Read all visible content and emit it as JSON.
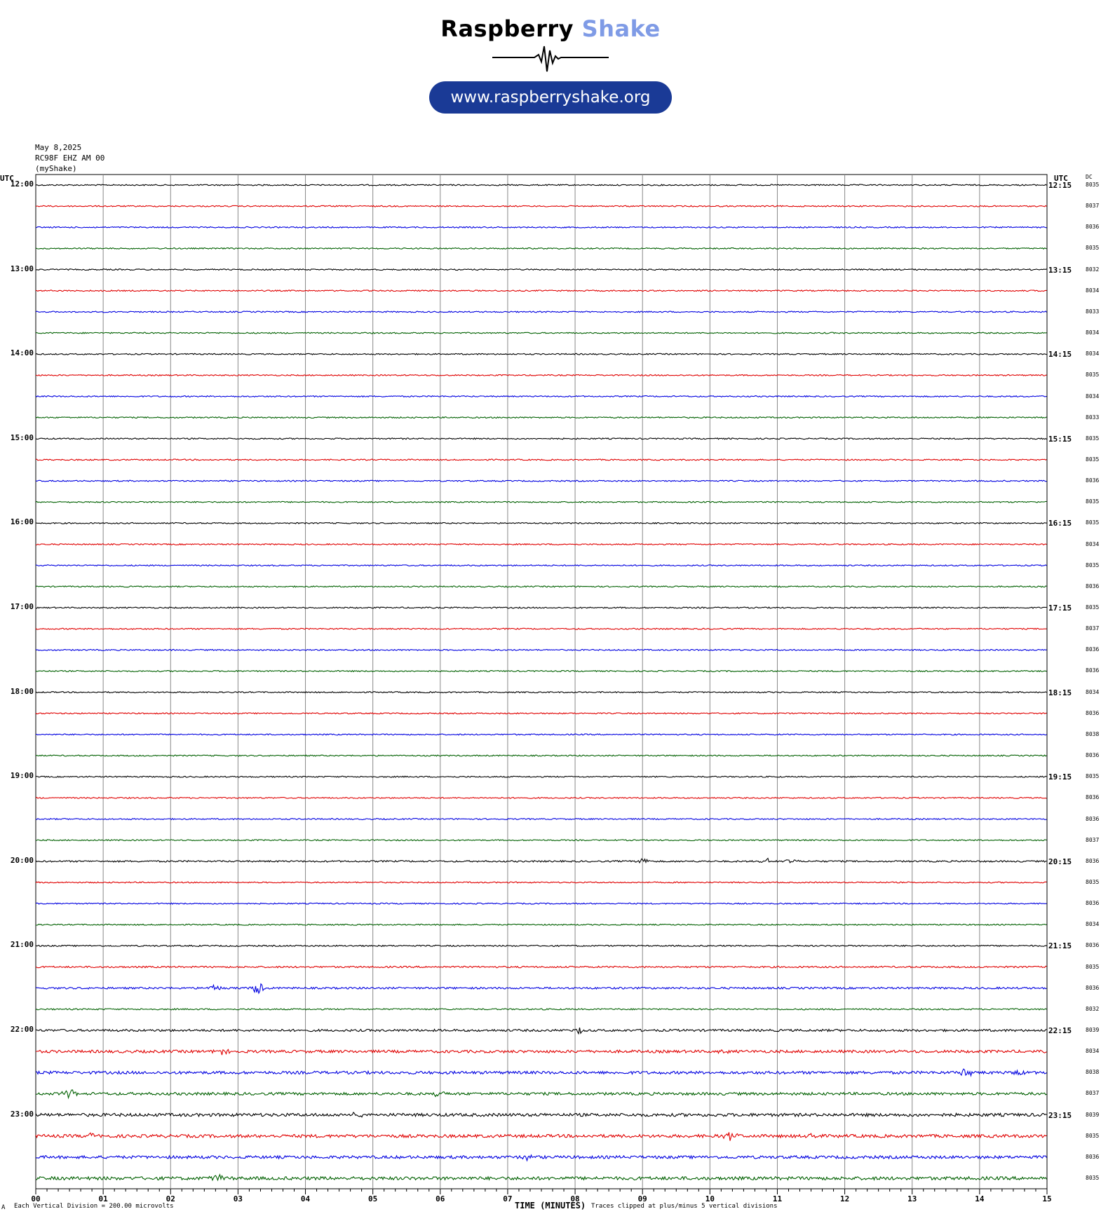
{
  "logo": {
    "brand_part1": "Raspberry",
    "brand_part2": "Shake",
    "url": "www.raspberryshake.org",
    "colors": {
      "brand_dark": "#1a3a96",
      "brand_light": "#7f9be6"
    }
  },
  "header": {
    "date": "May 8,2025",
    "station": "RC98F EHZ AM 00",
    "source": "(myShake)"
  },
  "chart_data": {
    "type": "helicorder",
    "left_axis_label": "UTC",
    "right_axis_label": "UTC",
    "dc_label": "DC",
    "xlabel": "TIME (MINUTES)",
    "x_ticks": [
      "00",
      "01",
      "02",
      "03",
      "04",
      "05",
      "06",
      "07",
      "08",
      "09",
      "10",
      "11",
      "12",
      "13",
      "14",
      "15"
    ],
    "xlim": [
      0,
      15
    ],
    "hour_labels_left": [
      "12:00",
      "13:00",
      "14:00",
      "15:00",
      "16:00",
      "17:00",
      "18:00",
      "19:00",
      "20:00",
      "21:00",
      "22:00",
      "23:00"
    ],
    "hour_labels_right": [
      "12:15",
      "13:15",
      "14:15",
      "15:15",
      "16:15",
      "17:15",
      "18:15",
      "19:15",
      "20:15",
      "21:15",
      "22:15",
      "23:15"
    ],
    "trace_colors": [
      "#000000",
      "#e00000",
      "#0000e0",
      "#006000"
    ],
    "dc_values": [
      8035,
      8037,
      8036,
      8035,
      8032,
      8034,
      8033,
      8034,
      8034,
      8035,
      8034,
      8033,
      8035,
      8035,
      8036,
      8035,
      8035,
      8034,
      8035,
      8036,
      8035,
      8037,
      8036,
      8036,
      8034,
      8036,
      8038,
      8036,
      8035,
      8036,
      8036,
      8037,
      8036,
      8035,
      8036,
      8034,
      8036,
      8035,
      8036,
      8032,
      8039,
      8034,
      8038,
      8037,
      8039,
      8035,
      8036,
      8035
    ],
    "noise_levels": [
      1,
      1,
      1,
      1,
      1,
      1,
      1,
      1,
      1,
      1,
      1,
      1,
      1,
      1,
      1,
      1,
      1,
      1,
      1,
      1,
      1,
      1,
      1,
      1,
      1,
      1,
      1,
      1,
      1,
      1,
      1,
      1,
      1.3,
      1,
      1,
      1,
      1.1,
      1.3,
      1.5,
      1.1,
      1.8,
      2.2,
      2.3,
      2.2,
      2.5,
      2.5,
      2.3,
      2.6
    ],
    "events": [
      {
        "trace": 32,
        "minute": 9.0,
        "amp": 6
      },
      {
        "trace": 32,
        "minute": 10.85,
        "amp": 4
      },
      {
        "trace": 32,
        "minute": 11.2,
        "amp": 4
      },
      {
        "trace": 38,
        "minute": 2.65,
        "amp": 5
      },
      {
        "trace": 38,
        "minute": 3.3,
        "amp": 9
      },
      {
        "trace": 40,
        "minute": 8.05,
        "amp": 4
      },
      {
        "trace": 41,
        "minute": 2.75,
        "amp": 5
      },
      {
        "trace": 41,
        "minute": 10.15,
        "amp": 5
      },
      {
        "trace": 42,
        "minute": 13.8,
        "amp": 8
      },
      {
        "trace": 42,
        "minute": 14.55,
        "amp": 5
      },
      {
        "trace": 43,
        "minute": 0.5,
        "amp": 6
      },
      {
        "trace": 43,
        "minute": 5.95,
        "amp": 4
      },
      {
        "trace": 44,
        "minute": 4.8,
        "amp": 4
      },
      {
        "trace": 45,
        "minute": 0.85,
        "amp": 6
      },
      {
        "trace": 45,
        "minute": 10.3,
        "amp": 6
      },
      {
        "trace": 45,
        "minute": 11.5,
        "amp": 7
      },
      {
        "trace": 46,
        "minute": 7.3,
        "amp": 4
      },
      {
        "trace": 47,
        "minute": 2.7,
        "amp": 6
      }
    ]
  },
  "footer": {
    "scale_note": "Each Vertical Division =  200.00 microvolts",
    "clip_note": "Traces clipped at plus/minus 5 vertical divisions",
    "corner_mark": "A"
  }
}
